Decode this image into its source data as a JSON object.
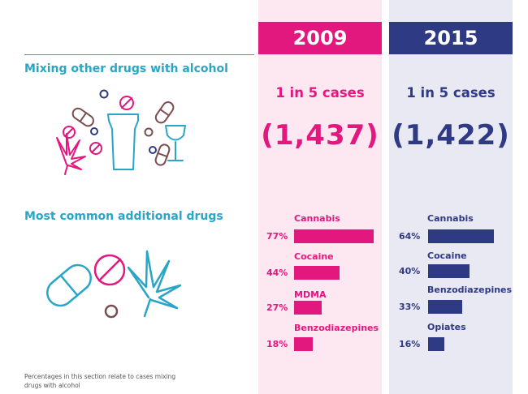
{
  "sections": {
    "mixing_title": "Mixing other drugs with alcohol",
    "common_title": "Most common additional drugs"
  },
  "footnote": "Percentages in this section relate to cases mixing drugs with alcohol",
  "colors": {
    "pink": "#e3187f",
    "navy": "#2f3a84",
    "teal": "#29a6c7",
    "brown": "#7a4e4e"
  },
  "icons": [
    "pill-icon",
    "no-entry-icon",
    "cannabis-leaf-icon",
    "pint-glass-icon",
    "wine-glass-icon"
  ],
  "columns": [
    {
      "year": "2009",
      "ratio": "1 in 5 cases",
      "count": "(1,437)"
    },
    {
      "year": "2015",
      "ratio": "1 in 5 cases",
      "count": "(1,422)"
    }
  ],
  "chart_data": [
    {
      "type": "bar",
      "title": "2009",
      "categories": [
        "Cannabis",
        "Cocaine",
        "MDMA",
        "Benzodiazepines"
      ],
      "values": [
        77,
        44,
        27,
        18
      ],
      "labels": [
        "77%",
        "44%",
        "27%",
        "18%"
      ],
      "xlim": [
        0,
        100
      ]
    },
    {
      "type": "bar",
      "title": "2015",
      "categories": [
        "Cannabis",
        "Cocaine",
        "Benzodiazepines",
        "Opiates"
      ],
      "values": [
        64,
        40,
        33,
        16
      ],
      "labels": [
        "64%",
        "40%",
        "33%",
        "16%"
      ],
      "xlim": [
        0,
        100
      ]
    }
  ]
}
